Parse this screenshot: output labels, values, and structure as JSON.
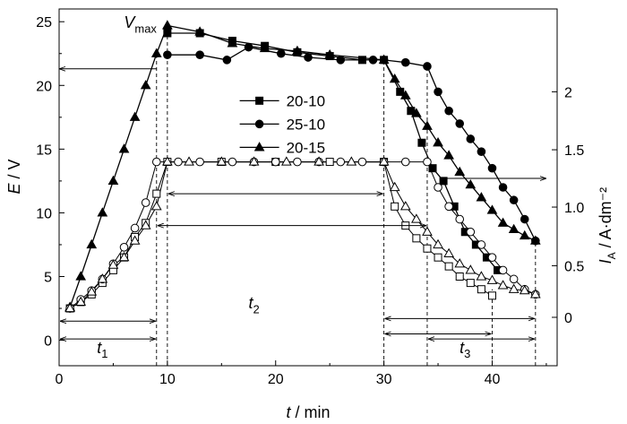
{
  "chart_data": {
    "type": "line",
    "xlabel": "t / min",
    "ylabel_left": "E / V",
    "ylabel_right": "I_A / A·dm⁻²",
    "xlim": [
      0,
      46
    ],
    "ylim_left": [
      -2,
      26
    ],
    "right_axis_ticks": [
      {
        "label": "0",
        "e_level": 1.8
      },
      {
        "label": "0.5",
        "e_level": 5.85
      },
      {
        "label": "1.0",
        "e_level": 10.45
      },
      {
        "label": "1.5",
        "e_level": 14.95
      },
      {
        "label": "2",
        "e_level": 19.5
      }
    ],
    "x_ticks": [
      0,
      10,
      20,
      30,
      40
    ],
    "y_ticks_left": [
      0,
      5,
      10,
      15,
      20,
      25
    ],
    "legend": {
      "placement": "center-top",
      "entries": [
        {
          "label": "20-10",
          "marker": "square"
        },
        {
          "label": "25-10",
          "marker": "circle"
        },
        {
          "label": "20-15",
          "marker": "triangle"
        }
      ]
    },
    "series": [
      {
        "name": "20-10",
        "axis": "E",
        "marker": "square",
        "filled": true,
        "points": [
          [
            10,
            24.1
          ],
          [
            13,
            24.1
          ],
          [
            16,
            23.5
          ],
          [
            19,
            23.1
          ],
          [
            22,
            22.6
          ],
          [
            25,
            22.3
          ],
          [
            28,
            22
          ],
          [
            30,
            22
          ],
          [
            31.5,
            19.5
          ],
          [
            32.5,
            18
          ],
          [
            33.5,
            15.5
          ],
          [
            34.5,
            13.5
          ],
          [
            35.5,
            12.5
          ],
          [
            36.5,
            10.5
          ],
          [
            37.5,
            8.5
          ],
          [
            38.5,
            7.5
          ],
          [
            39.5,
            6.5
          ],
          [
            40.5,
            5.5
          ]
        ]
      },
      {
        "name": "25-10",
        "axis": "E",
        "marker": "circle",
        "filled": true,
        "points": [
          [
            10,
            22.4
          ],
          [
            13,
            22.4
          ],
          [
            15.5,
            22
          ],
          [
            17.5,
            23
          ],
          [
            20.5,
            22.5
          ],
          [
            23,
            22.2
          ],
          [
            26,
            22
          ],
          [
            29,
            22
          ],
          [
            30,
            22
          ],
          [
            32,
            21.8
          ],
          [
            34,
            21.5
          ],
          [
            35,
            19.5
          ],
          [
            36,
            18
          ],
          [
            37,
            17
          ],
          [
            38,
            15.8
          ],
          [
            39,
            14.8
          ],
          [
            40,
            13.5
          ],
          [
            41,
            12
          ],
          [
            42,
            11
          ],
          [
            43,
            9.5
          ],
          [
            44,
            7.8
          ]
        ]
      },
      {
        "name": "20-15",
        "axis": "E",
        "marker": "triangle",
        "filled": true,
        "points": [
          [
            1,
            2.6
          ],
          [
            2,
            5
          ],
          [
            3,
            7.5
          ],
          [
            4,
            10
          ],
          [
            5,
            12.5
          ],
          [
            6,
            15
          ],
          [
            7,
            17.5
          ],
          [
            8,
            20
          ],
          [
            9,
            22.5
          ],
          [
            10,
            24.7
          ],
          [
            13,
            24.2
          ],
          [
            16,
            23.3
          ],
          [
            19,
            22.9
          ],
          [
            22,
            22.7
          ],
          [
            25,
            22.4
          ],
          [
            30,
            22
          ],
          [
            31,
            20.5
          ],
          [
            32,
            19.2
          ],
          [
            33,
            17.8
          ],
          [
            34,
            16.8
          ],
          [
            35,
            15.5
          ],
          [
            36,
            14.5
          ],
          [
            37,
            13.2
          ],
          [
            38,
            12.2
          ],
          [
            39,
            11.2
          ],
          [
            40,
            10.2
          ],
          [
            41,
            9.2
          ],
          [
            42,
            8.7
          ],
          [
            43,
            8.2
          ],
          [
            44,
            7.8
          ]
        ]
      },
      {
        "name": "20-10",
        "axis": "I_A",
        "marker": "square",
        "filled": false,
        "points": [
          [
            1,
            2.5
          ],
          [
            2,
            3
          ],
          [
            3,
            3.6
          ],
          [
            4,
            4.5
          ],
          [
            5,
            5.5
          ],
          [
            6,
            6.5
          ],
          [
            7,
            8.1
          ],
          [
            8,
            9.2
          ],
          [
            9,
            11.5
          ],
          [
            10,
            14
          ],
          [
            15,
            14
          ],
          [
            20,
            14
          ],
          [
            25,
            14
          ],
          [
            30,
            14
          ],
          [
            31,
            10.5
          ],
          [
            32,
            9
          ],
          [
            33,
            8
          ],
          [
            34,
            7.2
          ],
          [
            35,
            6.5
          ],
          [
            36,
            5.8
          ],
          [
            37,
            5
          ],
          [
            38,
            4.5
          ],
          [
            39,
            4
          ],
          [
            40,
            3.5
          ]
        ]
      },
      {
        "name": "25-10",
        "axis": "I_A",
        "marker": "circle",
        "filled": false,
        "points": [
          [
            1,
            2.5
          ],
          [
            2,
            3.2
          ],
          [
            3,
            3.9
          ],
          [
            4,
            4.8
          ],
          [
            5,
            6
          ],
          [
            6,
            7.3
          ],
          [
            7,
            8.8
          ],
          [
            8,
            10.8
          ],
          [
            9,
            14
          ],
          [
            11,
            14
          ],
          [
            13,
            14
          ],
          [
            16,
            14
          ],
          [
            18,
            14
          ],
          [
            20,
            14
          ],
          [
            22,
            14
          ],
          [
            24,
            14
          ],
          [
            26,
            14
          ],
          [
            28,
            14
          ],
          [
            30,
            14
          ],
          [
            32,
            14
          ],
          [
            34,
            14
          ],
          [
            35,
            12
          ],
          [
            36,
            10.5
          ],
          [
            37,
            9.5
          ],
          [
            38,
            8.5
          ],
          [
            39,
            7.5
          ],
          [
            40,
            6.5
          ],
          [
            41,
            5.5
          ],
          [
            42,
            4.8
          ],
          [
            43,
            4
          ],
          [
            44,
            3.6
          ]
        ]
      },
      {
        "name": "20-15",
        "axis": "I_A",
        "marker": "triangle",
        "filled": false,
        "points": [
          [
            1,
            2.5
          ],
          [
            2,
            3
          ],
          [
            3,
            3.8
          ],
          [
            4,
            4.8
          ],
          [
            5,
            5.9
          ],
          [
            6,
            6.5
          ],
          [
            7,
            7.8
          ],
          [
            8,
            9
          ],
          [
            9,
            10.5
          ],
          [
            10,
            14
          ],
          [
            12,
            14
          ],
          [
            15,
            14
          ],
          [
            18,
            14
          ],
          [
            21,
            14
          ],
          [
            24,
            14
          ],
          [
            27,
            14
          ],
          [
            30,
            14
          ],
          [
            31,
            12
          ],
          [
            32,
            10.5
          ],
          [
            33,
            9.5
          ],
          [
            34,
            8.5
          ],
          [
            35,
            7.5
          ],
          [
            36,
            6.8
          ],
          [
            37,
            6
          ],
          [
            38,
            5.5
          ],
          [
            39,
            5
          ],
          [
            40,
            4.7
          ],
          [
            41,
            4.3
          ],
          [
            42,
            4
          ],
          [
            43,
            3.9
          ],
          [
            44,
            3.6
          ]
        ]
      }
    ],
    "annotations": {
      "vmax": {
        "letter": "V",
        "subscript": "max",
        "x": 7.5,
        "y": 24.1
      },
      "t1": {
        "letter": "t",
        "subscript": "1",
        "x": 4,
        "y": -1
      },
      "t2": {
        "letter": "t",
        "subscript": "2",
        "x": 18,
        "y": 2.5
      },
      "t3": {
        "letter": "t",
        "subscript": "3",
        "x": 37.5,
        "y": -1
      },
      "vlines": [
        {
          "x": 9,
          "ymin": -2,
          "ymax": 22.5
        },
        {
          "x": 10,
          "ymin": -2,
          "ymax": 24.7
        },
        {
          "x": 30,
          "ymin": -2,
          "ymax": 22
        },
        {
          "x": 34,
          "ymin": -2,
          "ymax": 21.5
        },
        {
          "x": 40,
          "ymin": -2,
          "ymax": 4
        },
        {
          "x": 44,
          "ymin": -2,
          "ymax": 7.8
        }
      ],
      "double_arrows": [
        {
          "x1": 0,
          "x2": 9,
          "y": 1.5
        },
        {
          "x1": 0,
          "x2": 9,
          "y": 0.1
        },
        {
          "x1": 10,
          "x2": 30,
          "y": 11.5
        },
        {
          "x1": 9,
          "x2": 34,
          "y": 9
        },
        {
          "x1": 30,
          "x2": 40,
          "y": 0.5
        },
        {
          "x1": 30,
          "x2": 44,
          "y": 1.7
        },
        {
          "x1": 34,
          "x2": 44,
          "y": 0.1
        }
      ],
      "axis_arrows": [
        {
          "from_x": 9,
          "to_x": 0,
          "y": 21.3
        },
        {
          "from_x": 35.5,
          "to_x": 45,
          "y": 12.7
        }
      ]
    }
  }
}
